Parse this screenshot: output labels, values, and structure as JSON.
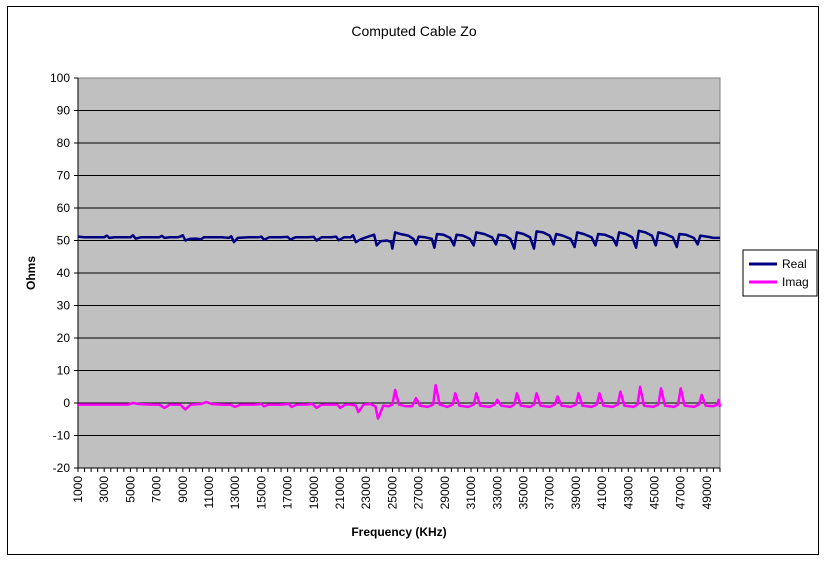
{
  "chart_data": {
    "type": "line",
    "title": "Computed Cable Zo",
    "xlabel": "Frequency (KHz)",
    "ylabel": "Ohms",
    "xlim": [
      1000,
      50000
    ],
    "ylim": [
      -20,
      100
    ],
    "y_ticks": [
      100,
      90,
      80,
      70,
      60,
      50,
      40,
      30,
      20,
      10,
      0,
      -10,
      -20
    ],
    "x_ticks": [
      1000,
      3000,
      5000,
      7000,
      9000,
      11000,
      13000,
      15000,
      17000,
      19000,
      21000,
      23000,
      25000,
      27000,
      29000,
      31000,
      33000,
      35000,
      37000,
      39000,
      41000,
      43000,
      45000,
      47000,
      49000
    ],
    "grid": true,
    "legend": "right",
    "plot_background": "#c0c0c0",
    "series": [
      {
        "name": "Real",
        "color": "#000080",
        "points": [
          [
            1000,
            51.2
          ],
          [
            1200,
            51.1
          ],
          [
            1500,
            51.0
          ],
          [
            2000,
            51.0
          ],
          [
            2500,
            51.0
          ],
          [
            3000,
            51.0
          ],
          [
            3200,
            51.5
          ],
          [
            3400,
            50.8
          ],
          [
            3800,
            51.0
          ],
          [
            4500,
            51.0
          ],
          [
            5000,
            51.0
          ],
          [
            5200,
            51.6
          ],
          [
            5400,
            50.6
          ],
          [
            5800,
            51.0
          ],
          [
            6500,
            51.0
          ],
          [
            7200,
            51.0
          ],
          [
            7400,
            51.4
          ],
          [
            7600,
            50.8
          ],
          [
            8000,
            51.0
          ],
          [
            8600,
            51.0
          ],
          [
            8800,
            51.2
          ],
          [
            9000,
            51.6
          ],
          [
            9200,
            50.0
          ],
          [
            9500,
            50.5
          ],
          [
            10000,
            50.6
          ],
          [
            10400,
            50.4
          ],
          [
            10600,
            51.0
          ],
          [
            11000,
            51.0
          ],
          [
            11500,
            51.0
          ],
          [
            12000,
            51.0
          ],
          [
            12500,
            50.8
          ],
          [
            12700,
            51.3
          ],
          [
            12900,
            49.5
          ],
          [
            13200,
            50.8
          ],
          [
            14000,
            51.0
          ],
          [
            14800,
            51.0
          ],
          [
            15000,
            51.2
          ],
          [
            15200,
            50.2
          ],
          [
            15600,
            51.0
          ],
          [
            16500,
            51.0
          ],
          [
            17000,
            51.1
          ],
          [
            17200,
            50.3
          ],
          [
            17600,
            51.0
          ],
          [
            18500,
            51.0
          ],
          [
            19000,
            51.1
          ],
          [
            19200,
            50.0
          ],
          [
            19600,
            51.0
          ],
          [
            20300,
            51.0
          ],
          [
            20700,
            51.2
          ],
          [
            20900,
            50.1
          ],
          [
            21300,
            51.0
          ],
          [
            21800,
            51.0
          ],
          [
            22000,
            51.6
          ],
          [
            22200,
            49.5
          ],
          [
            22600,
            50.4
          ],
          [
            23000,
            51.0
          ],
          [
            23400,
            51.5
          ],
          [
            23600,
            51.8
          ],
          [
            23800,
            48.5
          ],
          [
            24100,
            49.8
          ],
          [
            24600,
            50.0
          ],
          [
            24900,
            49.5
          ],
          [
            25000,
            47.5
          ],
          [
            25200,
            52.5
          ],
          [
            25600,
            52.0
          ],
          [
            26200,
            51.5
          ],
          [
            26600,
            50.5
          ],
          [
            26800,
            48.8
          ],
          [
            27000,
            51.2
          ],
          [
            27500,
            51.0
          ],
          [
            28000,
            50.5
          ],
          [
            28200,
            47.8
          ],
          [
            28400,
            52.0
          ],
          [
            28900,
            51.8
          ],
          [
            29400,
            50.8
          ],
          [
            29700,
            48.5
          ],
          [
            29900,
            51.8
          ],
          [
            30400,
            51.5
          ],
          [
            30900,
            50.5
          ],
          [
            31200,
            48.5
          ],
          [
            31400,
            52.5
          ],
          [
            32000,
            52.0
          ],
          [
            32600,
            51.0
          ],
          [
            32900,
            48.8
          ],
          [
            33100,
            51.8
          ],
          [
            33600,
            51.5
          ],
          [
            34000,
            50.5
          ],
          [
            34300,
            47.5
          ],
          [
            34500,
            52.5
          ],
          [
            35000,
            52.0
          ],
          [
            35500,
            51.0
          ],
          [
            35800,
            47.5
          ],
          [
            36000,
            52.8
          ],
          [
            36500,
            52.5
          ],
          [
            37000,
            51.5
          ],
          [
            37300,
            48.8
          ],
          [
            37500,
            52.0
          ],
          [
            38000,
            51.5
          ],
          [
            38600,
            50.5
          ],
          [
            38900,
            48.0
          ],
          [
            39100,
            52.5
          ],
          [
            39600,
            52.0
          ],
          [
            40200,
            51.0
          ],
          [
            40500,
            48.5
          ],
          [
            40700,
            52.0
          ],
          [
            41200,
            51.8
          ],
          [
            41800,
            50.8
          ],
          [
            42100,
            48.5
          ],
          [
            42300,
            52.5
          ],
          [
            42800,
            52.0
          ],
          [
            43300,
            51.0
          ],
          [
            43600,
            47.8
          ],
          [
            43800,
            53.0
          ],
          [
            44300,
            52.5
          ],
          [
            44800,
            51.5
          ],
          [
            45100,
            48.5
          ],
          [
            45300,
            52.5
          ],
          [
            45800,
            52.0
          ],
          [
            46400,
            51.0
          ],
          [
            46700,
            48.0
          ],
          [
            46900,
            52.0
          ],
          [
            47400,
            51.8
          ],
          [
            48000,
            50.8
          ],
          [
            48300,
            48.8
          ],
          [
            48500,
            51.5
          ],
          [
            49000,
            51.2
          ],
          [
            49500,
            50.8
          ],
          [
            50000,
            50.8
          ]
        ]
      },
      {
        "name": "Imag",
        "color": "#ff00ff",
        "points": [
          [
            1000,
            -0.5
          ],
          [
            2000,
            -0.5
          ],
          [
            3000,
            -0.5
          ],
          [
            4000,
            -0.5
          ],
          [
            4800,
            -0.5
          ],
          [
            5200,
            0.0
          ],
          [
            5600,
            -0.3
          ],
          [
            6500,
            -0.5
          ],
          [
            7200,
            -0.5
          ],
          [
            7600,
            -1.5
          ],
          [
            8000,
            -0.5
          ],
          [
            8800,
            -0.5
          ],
          [
            9200,
            -2.0
          ],
          [
            9600,
            -0.5
          ],
          [
            10400,
            -0.3
          ],
          [
            10800,
            0.3
          ],
          [
            11200,
            -0.3
          ],
          [
            12000,
            -0.5
          ],
          [
            12600,
            -0.5
          ],
          [
            13000,
            -1.2
          ],
          [
            13400,
            -0.5
          ],
          [
            14400,
            -0.5
          ],
          [
            15000,
            -0.3
          ],
          [
            15200,
            -1.0
          ],
          [
            15600,
            -0.5
          ],
          [
            16500,
            -0.5
          ],
          [
            17100,
            -0.3
          ],
          [
            17300,
            -1.2
          ],
          [
            17700,
            -0.5
          ],
          [
            18400,
            -0.5
          ],
          [
            18900,
            -0.3
          ],
          [
            19200,
            -1.5
          ],
          [
            19600,
            -0.5
          ],
          [
            20300,
            -0.5
          ],
          [
            20800,
            -0.5
          ],
          [
            21000,
            -1.5
          ],
          [
            21400,
            -0.5
          ],
          [
            21900,
            -0.5
          ],
          [
            22200,
            -0.8
          ],
          [
            22400,
            -2.8
          ],
          [
            22800,
            -0.5
          ],
          [
            23300,
            -0.3
          ],
          [
            23700,
            -1.0
          ],
          [
            23900,
            -4.8
          ],
          [
            24300,
            -0.8
          ],
          [
            24700,
            -1.0
          ],
          [
            25000,
            -0.5
          ],
          [
            25200,
            4.0
          ],
          [
            25500,
            -0.5
          ],
          [
            26000,
            -1.0
          ],
          [
            26500,
            -1.0
          ],
          [
            26800,
            1.5
          ],
          [
            27100,
            -0.8
          ],
          [
            27700,
            -1.2
          ],
          [
            28100,
            -0.5
          ],
          [
            28300,
            5.5
          ],
          [
            28600,
            -0.5
          ],
          [
            29200,
            -1.2
          ],
          [
            29600,
            -0.5
          ],
          [
            29800,
            3.0
          ],
          [
            30100,
            -0.8
          ],
          [
            30800,
            -1.2
          ],
          [
            31200,
            -0.5
          ],
          [
            31400,
            3.0
          ],
          [
            31700,
            -0.8
          ],
          [
            32400,
            -1.2
          ],
          [
            32800,
            -0.5
          ],
          [
            33000,
            1.0
          ],
          [
            33300,
            -0.8
          ],
          [
            34000,
            -1.2
          ],
          [
            34300,
            -0.5
          ],
          [
            34500,
            3.0
          ],
          [
            34800,
            -0.8
          ],
          [
            35500,
            -1.2
          ],
          [
            35800,
            -0.5
          ],
          [
            36000,
            3.0
          ],
          [
            36300,
            -0.8
          ],
          [
            37000,
            -1.2
          ],
          [
            37400,
            -0.5
          ],
          [
            37600,
            2.0
          ],
          [
            37900,
            -0.8
          ],
          [
            38600,
            -1.2
          ],
          [
            39000,
            -0.5
          ],
          [
            39200,
            3.0
          ],
          [
            39500,
            -0.8
          ],
          [
            40200,
            -1.2
          ],
          [
            40600,
            -0.5
          ],
          [
            40800,
            3.0
          ],
          [
            41100,
            -0.8
          ],
          [
            41800,
            -1.2
          ],
          [
            42200,
            -0.5
          ],
          [
            42400,
            3.5
          ],
          [
            42700,
            -0.8
          ],
          [
            43400,
            -1.2
          ],
          [
            43700,
            -0.5
          ],
          [
            43900,
            5.0
          ],
          [
            44200,
            -0.8
          ],
          [
            44900,
            -1.2
          ],
          [
            45300,
            -0.5
          ],
          [
            45500,
            4.5
          ],
          [
            45800,
            -0.8
          ],
          [
            46500,
            -1.2
          ],
          [
            46800,
            -0.5
          ],
          [
            47000,
            4.5
          ],
          [
            47300,
            -0.8
          ],
          [
            48000,
            -1.2
          ],
          [
            48400,
            -0.5
          ],
          [
            48600,
            2.5
          ],
          [
            48900,
            -0.8
          ],
          [
            49500,
            -1.0
          ],
          [
            49800,
            -0.5
          ],
          [
            49900,
            1.0
          ],
          [
            50000,
            -1.2
          ]
        ]
      }
    ]
  }
}
